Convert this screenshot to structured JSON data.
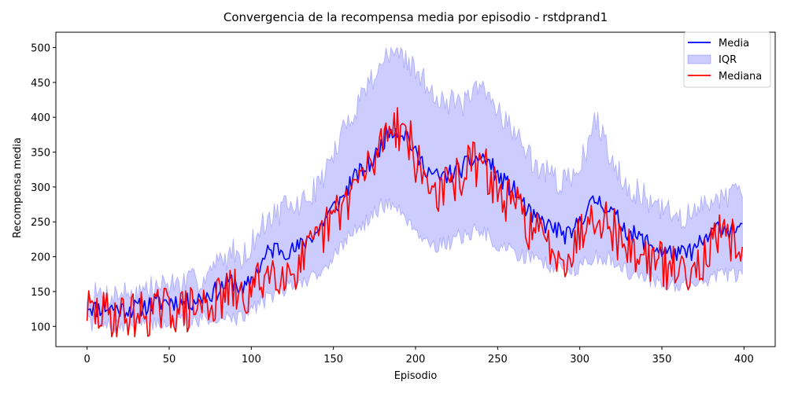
{
  "chart_data": {
    "type": "line",
    "title": "Convergencia de la recompensa media por episodio - rstdprand1",
    "xlabel": "Episodio",
    "ylabel": "Recompensa media",
    "xlim": [
      -19,
      419
    ],
    "ylim": [
      71,
      522
    ],
    "x_ticks": [
      0,
      50,
      100,
      150,
      200,
      250,
      300,
      350,
      400
    ],
    "y_ticks": [
      100,
      150,
      200,
      250,
      300,
      350,
      400,
      450,
      500
    ],
    "grid": false,
    "legend_position": "top-right",
    "colors": {
      "media": "#0000ff",
      "iqr_fill": "#0000ff",
      "mediana": "#ff0000"
    },
    "legend": [
      {
        "label": "Media",
        "kind": "line",
        "color": "#0000ff"
      },
      {
        "label": "IQR",
        "kind": "patch",
        "color": "#0000ff"
      },
      {
        "label": "Mediana",
        "kind": "line",
        "color": "#ff0000"
      }
    ],
    "series": [
      {
        "name": "Media",
        "anchors": [
          [
            0,
            132
          ],
          [
            5,
            125
          ],
          [
            10,
            128
          ],
          [
            20,
            125
          ],
          [
            30,
            126
          ],
          [
            40,
            132
          ],
          [
            50,
            137
          ],
          [
            60,
            133
          ],
          [
            70,
            142
          ],
          [
            80,
            152
          ],
          [
            85,
            162
          ],
          [
            90,
            165
          ],
          [
            95,
            148
          ],
          [
            100,
            168
          ],
          [
            105,
            185
          ],
          [
            110,
            205
          ],
          [
            115,
            213
          ],
          [
            120,
            210
          ],
          [
            125,
            208
          ],
          [
            130,
            215
          ],
          [
            135,
            228
          ],
          [
            140,
            235
          ],
          [
            145,
            255
          ],
          [
            150,
            270
          ],
          [
            155,
            282
          ],
          [
            160,
            305
          ],
          [
            165,
            318
          ],
          [
            170,
            328
          ],
          [
            175,
            340
          ],
          [
            180,
            365
          ],
          [
            185,
            385
          ],
          [
            190,
            380
          ],
          [
            195,
            375
          ],
          [
            200,
            345
          ],
          [
            205,
            332
          ],
          [
            210,
            318
          ],
          [
            215,
            312
          ],
          [
            220,
            318
          ],
          [
            225,
            322
          ],
          [
            230,
            330
          ],
          [
            235,
            338
          ],
          [
            240,
            342
          ],
          [
            245,
            335
          ],
          [
            250,
            315
          ],
          [
            255,
            305
          ],
          [
            260,
            295
          ],
          [
            265,
            278
          ],
          [
            270,
            258
          ],
          [
            275,
            252
          ],
          [
            280,
            245
          ],
          [
            285,
            240
          ],
          [
            290,
            232
          ],
          [
            295,
            228
          ],
          [
            300,
            255
          ],
          [
            305,
            268
          ],
          [
            310,
            282
          ],
          [
            315,
            275
          ],
          [
            320,
            262
          ],
          [
            325,
            248
          ],
          [
            330,
            235
          ],
          [
            335,
            228
          ],
          [
            340,
            222
          ],
          [
            345,
            215
          ],
          [
            350,
            208
          ],
          [
            355,
            205
          ],
          [
            360,
            202
          ],
          [
            365,
            205
          ],
          [
            370,
            210
          ],
          [
            375,
            222
          ],
          [
            380,
            230
          ],
          [
            385,
            245
          ],
          [
            390,
            238
          ],
          [
            395,
            242
          ],
          [
            399,
            235
          ]
        ],
        "noise_amplitude": 14
      },
      {
        "name": "Mediana",
        "anchors": [
          [
            0,
            125
          ],
          [
            5,
            117
          ],
          [
            10,
            118
          ],
          [
            20,
            116
          ],
          [
            30,
            117
          ],
          [
            40,
            120
          ],
          [
            50,
            126
          ],
          [
            60,
            122
          ],
          [
            70,
            130
          ],
          [
            80,
            137
          ],
          [
            85,
            148
          ],
          [
            90,
            150
          ],
          [
            95,
            135
          ],
          [
            100,
            150
          ],
          [
            105,
            165
          ],
          [
            110,
            178
          ],
          [
            115,
            182
          ],
          [
            120,
            178
          ],
          [
            125,
            180
          ],
          [
            130,
            190
          ],
          [
            135,
            205
          ],
          [
            140,
            218
          ],
          [
            145,
            238
          ],
          [
            150,
            255
          ],
          [
            155,
            270
          ],
          [
            160,
            290
          ],
          [
            165,
            310
          ],
          [
            170,
            320
          ],
          [
            175,
            338
          ],
          [
            180,
            372
          ],
          [
            185,
            398
          ],
          [
            190,
            385
          ],
          [
            195,
            380
          ],
          [
            200,
            335
          ],
          [
            205,
            315
          ],
          [
            210,
            300
          ],
          [
            215,
            292
          ],
          [
            220,
            300
          ],
          [
            225,
            310
          ],
          [
            230,
            325
          ],
          [
            235,
            335
          ],
          [
            240,
            328
          ],
          [
            245,
            318
          ],
          [
            250,
            292
          ],
          [
            255,
            280
          ],
          [
            260,
            275
          ],
          [
            265,
            262
          ],
          [
            270,
            240
          ],
          [
            275,
            230
          ],
          [
            280,
            218
          ],
          [
            285,
            212
          ],
          [
            290,
            205
          ],
          [
            295,
            202
          ],
          [
            300,
            235
          ],
          [
            305,
            255
          ],
          [
            310,
            268
          ],
          [
            315,
            255
          ],
          [
            320,
            240
          ],
          [
            325,
            222
          ],
          [
            330,
            210
          ],
          [
            335,
            205
          ],
          [
            340,
            200
          ],
          [
            345,
            195
          ],
          [
            350,
            188
          ],
          [
            355,
            183
          ],
          [
            360,
            180
          ],
          [
            365,
            185
          ],
          [
            370,
            190
          ],
          [
            375,
            198
          ],
          [
            380,
            210
          ],
          [
            385,
            228
          ],
          [
            390,
            218
          ],
          [
            395,
            225
          ],
          [
            399,
            220
          ]
        ],
        "noise_amplitude": 34
      }
    ],
    "iqr": {
      "name": "IQR",
      "lower_anchors": [
        [
          0,
          105
        ],
        [
          10,
          100
        ],
        [
          20,
          100
        ],
        [
          30,
          102
        ],
        [
          40,
          105
        ],
        [
          50,
          104
        ],
        [
          60,
          106
        ],
        [
          70,
          112
        ],
        [
          80,
          115
        ],
        [
          90,
          112
        ],
        [
          95,
          110
        ],
        [
          100,
          125
        ],
        [
          110,
          140
        ],
        [
          120,
          155
        ],
        [
          130,
          162
        ],
        [
          140,
          175
        ],
        [
          150,
          200
        ],
        [
          160,
          230
        ],
        [
          170,
          250
        ],
        [
          180,
          275
        ],
        [
          190,
          270
        ],
        [
          200,
          240
        ],
        [
          210,
          215
        ],
        [
          220,
          220
        ],
        [
          230,
          230
        ],
        [
          240,
          240
        ],
        [
          250,
          215
        ],
        [
          260,
          205
        ],
        [
          270,
          200
        ],
        [
          280,
          190
        ],
        [
          290,
          180
        ],
        [
          300,
          185
        ],
        [
          310,
          200
        ],
        [
          320,
          195
        ],
        [
          330,
          178
        ],
        [
          340,
          170
        ],
        [
          350,
          162
        ],
        [
          360,
          160
        ],
        [
          370,
          162
        ],
        [
          380,
          170
        ],
        [
          390,
          175
        ],
        [
          399,
          170
        ]
      ],
      "upper_anchors": [
        [
          0,
          145
        ],
        [
          10,
          145
        ],
        [
          20,
          148
        ],
        [
          30,
          150
        ],
        [
          40,
          155
        ],
        [
          50,
          162
        ],
        [
          60,
          160
        ],
        [
          70,
          170
        ],
        [
          80,
          190
        ],
        [
          90,
          210
        ],
        [
          95,
          200
        ],
        [
          100,
          220
        ],
        [
          110,
          255
        ],
        [
          120,
          268
        ],
        [
          130,
          275
        ],
        [
          140,
          300
        ],
        [
          150,
          345
        ],
        [
          160,
          400
        ],
        [
          170,
          445
        ],
        [
          180,
          480
        ],
        [
          185,
          495
        ],
        [
          190,
          495
        ],
        [
          200,
          465
        ],
        [
          210,
          440
        ],
        [
          220,
          420
        ],
        [
          230,
          420
        ],
        [
          240,
          440
        ],
        [
          250,
          415
        ],
        [
          260,
          380
        ],
        [
          270,
          340
        ],
        [
          280,
          320
        ],
        [
          290,
          305
        ],
        [
          300,
          330
        ],
        [
          310,
          395
        ],
        [
          320,
          340
        ],
        [
          330,
          300
        ],
        [
          340,
          285
        ],
        [
          350,
          265
        ],
        [
          360,
          258
        ],
        [
          370,
          260
        ],
        [
          380,
          285
        ],
        [
          390,
          290
        ],
        [
          399,
          285
        ]
      ],
      "noise_amplitude": 20,
      "clip_max": 500
    }
  }
}
